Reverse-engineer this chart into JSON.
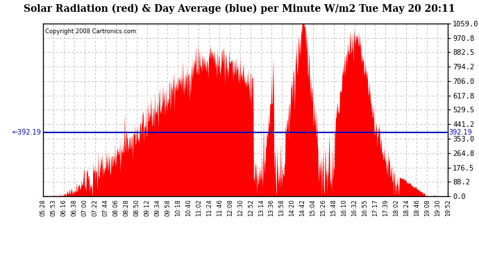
{
  "title": "Solar Radiation (red) & Day Average (blue) per Minute W/m2 Tue May 20 20:11",
  "copyright": "Copyright 2008 Cartronics.com",
  "y_max": 1059.0,
  "y_min": 0.0,
  "y_ticks": [
    0.0,
    88.2,
    176.5,
    264.8,
    353.0,
    441.2,
    529.5,
    617.8,
    706.0,
    794.2,
    882.5,
    970.8,
    1059.0
  ],
  "y_tick_labels": [
    "0.0",
    "88.2",
    "176.5",
    "264.8",
    "353.0",
    "441.2",
    "529.5",
    "617.8",
    "706.0",
    "794.2",
    "882.5",
    "970.8",
    "1059.0"
  ],
  "avg_value": 392.19,
  "bar_color": "#FF0000",
  "avg_color": "#0000BB",
  "background_color": "#FFFFFF",
  "grid_color": "#BBBBBB",
  "x_labels": [
    "05:28",
    "05:53",
    "06:16",
    "06:38",
    "07:00",
    "07:22",
    "07:44",
    "08:06",
    "08:28",
    "08:50",
    "09:12",
    "09:34",
    "09:58",
    "10:18",
    "10:40",
    "11:02",
    "11:24",
    "11:46",
    "12:08",
    "12:30",
    "12:52",
    "13:14",
    "13:36",
    "13:58",
    "14:20",
    "14:42",
    "15:04",
    "15:26",
    "15:48",
    "16:10",
    "16:32",
    "16:55",
    "17:17",
    "17:39",
    "18:02",
    "18:24",
    "18:46",
    "19:08",
    "19:30",
    "19:52"
  ]
}
